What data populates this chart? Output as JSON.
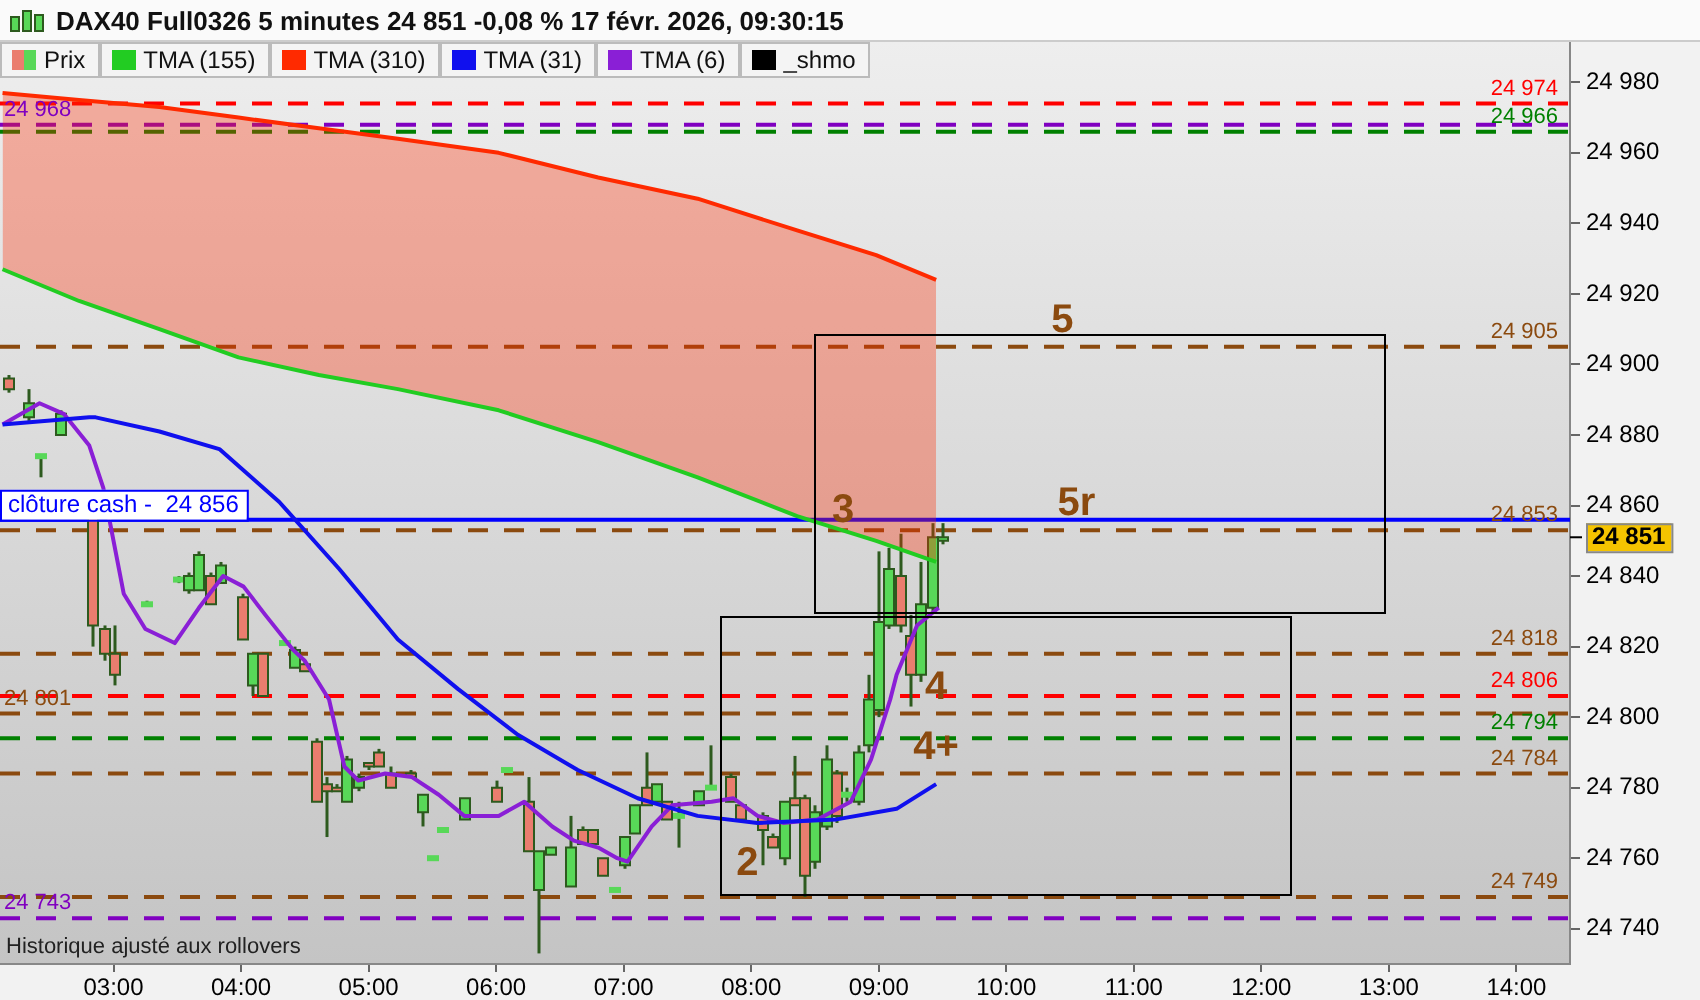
{
  "chart_data": {
    "type": "candlestick",
    "title": "DAX40 Full0326 5 minutes 24 851 -0,08 % 17 févr. 2026, 09:30:15",
    "legend": "top left",
    "xlim": [
      2.11,
      14.42
    ],
    "xticks": [
      {
        "value": 3,
        "label": "03:00"
      },
      {
        "value": 4,
        "label": "04:00"
      },
      {
        "value": 5,
        "label": "05:00"
      },
      {
        "value": 6,
        "label": "06:00"
      },
      {
        "value": 7,
        "label": "07:00"
      },
      {
        "value": 8,
        "label": "08:00"
      },
      {
        "value": 9,
        "label": "09:00"
      },
      {
        "value": 10,
        "label": "10:00"
      },
      {
        "value": 11,
        "label": "11:00"
      },
      {
        "value": 12,
        "label": "12:00"
      },
      {
        "value": 13,
        "label": "13:00"
      },
      {
        "value": 14,
        "label": "14:00"
      }
    ],
    "ylim": [
      24730,
      24992
    ],
    "yticks": [
      {
        "value": 24740,
        "label": "24 740"
      },
      {
        "value": 24760,
        "label": "24 760"
      },
      {
        "value": 24780,
        "label": "24 780"
      },
      {
        "value": 24800,
        "label": "24 800"
      },
      {
        "value": 24820,
        "label": "24 820"
      },
      {
        "value": 24840,
        "label": "24 840"
      },
      {
        "value": 24860,
        "label": "24 860"
      },
      {
        "value": 24880,
        "label": "24 880"
      },
      {
        "value": 24900,
        "label": "24 900"
      },
      {
        "value": 24920,
        "label": "24 920"
      },
      {
        "value": 24940,
        "label": "24 940"
      },
      {
        "value": 24960,
        "label": "24 960"
      },
      {
        "value": 24980,
        "label": "24 980"
      }
    ],
    "series": [
      {
        "name": "Prix",
        "x": [
          2.17,
          2.33,
          2.42,
          2.58,
          2.83,
          2.92,
          3.0,
          3.25,
          3.5,
          3.58,
          3.67,
          3.75,
          3.83,
          4.0,
          4.08,
          4.17,
          4.33,
          4.42,
          4.5,
          4.58,
          4.67,
          4.75,
          4.83,
          4.92,
          5.0,
          5.08,
          5.17,
          5.33,
          5.42,
          5.5,
          5.58,
          5.75,
          6.0,
          6.08,
          6.25,
          6.33,
          6.42,
          6.58,
          6.67,
          6.75,
          6.83,
          6.92,
          7.0,
          7.08,
          7.17,
          7.25,
          7.33,
          7.42,
          7.58,
          7.67,
          7.83,
          7.92,
          8.08,
          8.17,
          8.25,
          8.33,
          8.42,
          8.5,
          8.58,
          8.67,
          8.75,
          8.83,
          8.92,
          9.0,
          9.08,
          9.17,
          9.25,
          9.33,
          9.42,
          9.5
        ],
        "ohlc": [
          [
            24896,
            24897,
            24892,
            24893
          ],
          [
            24885,
            24893,
            24884,
            24889
          ],
          [
            24874,
            24874,
            24868,
            24874
          ],
          [
            24880,
            24887,
            24880,
            24886
          ],
          [
            24857,
            24857,
            24820,
            24826
          ],
          [
            24825,
            24826,
            24816,
            24818
          ],
          [
            24818,
            24826,
            24809,
            24812
          ],
          [
            24832,
            24833,
            24832,
            24832
          ],
          [
            24839,
            24840,
            24838,
            24839
          ],
          [
            24836,
            24841,
            24835,
            24840
          ],
          [
            24836,
            24847,
            24836,
            24846
          ],
          [
            24840,
            24841,
            24832,
            24832
          ],
          [
            24838,
            24844,
            24838,
            24843
          ],
          [
            24834,
            24835,
            24822,
            24822
          ],
          [
            24809,
            24818,
            24806,
            24818
          ],
          [
            24818,
            24818,
            24806,
            24806
          ],
          [
            24821,
            24822,
            24821,
            24821
          ],
          [
            24814,
            24820,
            24814,
            24819
          ],
          [
            24815,
            24816,
            24813,
            24813
          ],
          [
            24793,
            24794,
            24776,
            24776
          ],
          [
            24781,
            24783,
            24766,
            24779
          ],
          [
            24780,
            24781,
            24779,
            24779
          ],
          [
            24776,
            24789,
            24776,
            24788
          ],
          [
            24780,
            24784,
            24779,
            24783
          ],
          [
            24787,
            24787,
            24785,
            24786
          ],
          [
            24790,
            24791,
            24786,
            24786
          ],
          [
            24784,
            24786,
            24780,
            24780
          ],
          [
            24784,
            24785,
            24783,
            24783
          ],
          [
            24773,
            24778,
            24769,
            24778
          ],
          [
            24760,
            24760,
            24760,
            24760
          ],
          [
            24768,
            24768,
            24768,
            24768
          ],
          [
            24771,
            24777,
            24771,
            24777
          ],
          [
            24780,
            24782,
            24776,
            24776
          ],
          [
            24785,
            24785,
            24785,
            24785
          ],
          [
            24776,
            24783,
            24762,
            24762
          ],
          [
            24751,
            24762,
            24733,
            24762
          ],
          [
            24761,
            24763,
            24761,
            24763
          ],
          [
            24752,
            24772,
            24752,
            24763
          ],
          [
            24768,
            24769,
            24764,
            24764
          ],
          [
            24768,
            24768,
            24764,
            24764
          ],
          [
            24760,
            24760,
            24755,
            24755
          ],
          [
            24751,
            24751,
            24751,
            24751
          ],
          [
            24758,
            24766,
            24757,
            24766
          ],
          [
            24767,
            24775,
            24767,
            24775
          ],
          [
            24780,
            24790,
            24775,
            24775
          ],
          [
            24776,
            24781,
            24776,
            24781
          ],
          [
            24776,
            24776,
            24771,
            24771
          ],
          [
            24772,
            24776,
            24763,
            24772
          ],
          [
            24775,
            24779,
            24775,
            24779
          ],
          [
            24780,
            24792,
            24780,
            24780
          ],
          [
            24783,
            24784,
            24776,
            24776
          ],
          [
            24775,
            24775,
            24771,
            24771
          ],
          [
            24772,
            24773,
            24758,
            24768
          ],
          [
            24766,
            24767,
            24763,
            24763
          ],
          [
            24760,
            24776,
            24758,
            24776
          ],
          [
            24777,
            24789,
            24775,
            24775
          ],
          [
            24777,
            24778,
            24749,
            24755
          ],
          [
            24759,
            24775,
            24757,
            24773
          ],
          [
            24769,
            24792,
            24768,
            24788
          ],
          [
            24784,
            24785,
            24770,
            24772
          ],
          [
            24778,
            24780,
            24776,
            24778
          ],
          [
            24776,
            24792,
            24775,
            24790
          ],
          [
            24792,
            24812,
            24790,
            24805
          ],
          [
            24802,
            24847,
            24800,
            24827
          ],
          [
            24826,
            24848,
            24825,
            24842
          ],
          [
            24840,
            24852,
            24824,
            24826
          ],
          [
            24823,
            24829,
            24803,
            24812
          ],
          [
            24812,
            24844,
            24810,
            24832
          ],
          [
            24831,
            24855,
            24830,
            24851
          ],
          [
            24850,
            24855,
            24849,
            24851
          ]
        ],
        "colors": [
          "#ea7d6e",
          "#58d858",
          "#58d858",
          "#58d858",
          "#ea7d6e",
          "#ea7d6e",
          "#ea7d6e",
          "#58d858",
          "#58d858",
          "#58d858",
          "#58d858",
          "#ea7d6e",
          "#58d858",
          "#ea7d6e",
          "#58d858",
          "#ea7d6e",
          "#58d858",
          "#58d858",
          "#ea7d6e",
          "#ea7d6e",
          "#ea7d6e",
          "#ea7d6e",
          "#58d858",
          "#58d858",
          "#ea7d6e",
          "#ea7d6e",
          "#ea7d6e",
          "#ea7d6e",
          "#58d858",
          "#58d858",
          "#58d858",
          "#58d858",
          "#ea7d6e",
          "#58d858",
          "#ea7d6e",
          "#58d858",
          "#58d858",
          "#58d858",
          "#ea7d6e",
          "#ea7d6e",
          "#ea7d6e",
          "#58d858",
          "#58d858",
          "#58d858",
          "#ea7d6e",
          "#58d858",
          "#ea7d6e",
          "#58d858",
          "#58d858",
          "#58d858",
          "#ea7d6e",
          "#ea7d6e",
          "#ea7d6e",
          "#ea7d6e",
          "#58d858",
          "#ea7d6e",
          "#ea7d6e",
          "#58d858",
          "#58d858",
          "#ea7d6e",
          "#58d858",
          "#58d858",
          "#58d858",
          "#58d858",
          "#58d858",
          "#ea7d6e",
          "#ea7d6e",
          "#58d858",
          "#58d858",
          "#58d858"
        ]
      },
      {
        "name": "TMA (155)",
        "type": "line",
        "color": "#22cc22",
        "x": [
          2.13,
          2.73,
          3.36,
          3.98,
          4.61,
          5.23,
          6.02,
          6.8,
          7.58,
          8.36,
          8.98,
          9.45
        ],
        "values": [
          24927,
          24918,
          24910,
          24902,
          24897,
          24893,
          24887,
          24878,
          24868,
          24857,
          24850,
          24844
        ]
      },
      {
        "name": "TMA (310)",
        "type": "line",
        "color": "#ff2a00",
        "x": [
          2.13,
          2.73,
          3.36,
          3.98,
          4.61,
          5.23,
          6.02,
          6.8,
          7.58,
          8.36,
          8.98,
          9.45
        ],
        "values": [
          24977,
          24975,
          24973,
          24970,
          24967,
          24964,
          24960,
          24953,
          24947,
          24938,
          24931,
          24924
        ]
      },
      {
        "name": "TMA (31)",
        "type": "line",
        "color": "#1010ee",
        "x": [
          2.13,
          2.81,
          2.86,
          3.36,
          3.83,
          4.3,
          4.77,
          5.23,
          5.7,
          6.17,
          6.64,
          7.11,
          7.58,
          8.05,
          8.67,
          9.14,
          9.45
        ],
        "values": [
          24883,
          24885,
          24885,
          24881,
          24876,
          24861,
          24842,
          24822,
          24808,
          24795,
          24785,
          24777,
          24772,
          24770,
          24771,
          24774,
          24781
        ]
      },
      {
        "name": "TMA (6)",
        "type": "line",
        "color": "#8a1fd6",
        "x": [
          2.13,
          2.42,
          2.61,
          2.81,
          2.92,
          3.08,
          3.25,
          3.48,
          3.67,
          3.86,
          4.02,
          4.19,
          4.41,
          4.5,
          4.69,
          4.81,
          4.92,
          5.13,
          5.34,
          5.55,
          5.75,
          6.02,
          6.22,
          6.44,
          6.61,
          6.8,
          6.95,
          7.03,
          7.22,
          7.38,
          7.69,
          7.86,
          8.05,
          8.25,
          8.52,
          8.78,
          8.94,
          9.09,
          9.14,
          9.3,
          9.47
        ],
        "values": [
          24883,
          24889,
          24886,
          24877,
          24865,
          24835,
          24825,
          24821,
          24831,
          24840,
          24837,
          24829,
          24819,
          24816,
          24805,
          24786,
          24782,
          24784,
          24783,
          24778,
          24772,
          24772,
          24776,
          24769,
          24765,
          24763,
          24760,
          24759,
          24769,
          24775,
          24776,
          24777,
          24772,
          24770,
          24771,
          24776,
          24788,
          24805,
          24812,
          24826,
          24831
        ]
      },
      {
        "name": "_shmo",
        "type": "line",
        "color": "#000000"
      }
    ],
    "ref_lines": [
      {
        "axis": "y",
        "value": 24974,
        "label": "24 974",
        "color": "#ff0000",
        "line_style": "dashed"
      },
      {
        "axis": "y",
        "value": 24966,
        "label": "24 966",
        "color": "#008000",
        "line_style": "dashed"
      },
      {
        "axis": "y",
        "value": 24968,
        "label": "24 968",
        "color": "#8000c0",
        "line_style": "dashed"
      },
      {
        "axis": "y",
        "value": 24905,
        "label": "24 905",
        "color": "#8b4a0f",
        "line_style": "dashed"
      },
      {
        "axis": "y",
        "value": 24856,
        "label": "clôture cash -  24 856",
        "color": "#0000ff",
        "line_style": "solid"
      },
      {
        "axis": "y",
        "value": 24853,
        "label": "24 853",
        "color": "#8b4a0f",
        "line_style": "dashed"
      },
      {
        "axis": "y",
        "value": 24818,
        "label": "24 818",
        "color": "#8b4a0f",
        "line_style": "dashed"
      },
      {
        "axis": "y",
        "value": 24806,
        "label": "24 806",
        "color": "#ff0000",
        "line_style": "dashed"
      },
      {
        "axis": "y",
        "value": 24801,
        "label": "24 801",
        "color": "#8b4a0f",
        "line_style": "dashed"
      },
      {
        "axis": "y",
        "value": 24794,
        "label": "24 794",
        "color": "#008000",
        "line_style": "dashed"
      },
      {
        "axis": "y",
        "value": 24784,
        "label": "24 784",
        "color": "#8b4a0f",
        "line_style": "dashed"
      },
      {
        "axis": "y",
        "value": 24749,
        "label": "24 749",
        "color": "#8b4a0f",
        "line_style": "dashed"
      },
      {
        "axis": "y",
        "value": 24743,
        "label": "24 743",
        "color": "#8000c0",
        "line_style": "dashed"
      }
    ],
    "annotations": [
      "Historique ajusté aux rollovers",
      "24 851",
      {
        "text": "5",
        "x": 10.44,
        "y": 24905
      },
      {
        "text": "5r",
        "x": 10.55,
        "y": 24853
      },
      {
        "text": "3",
        "x": 8.72,
        "y": 24851
      },
      {
        "text": "4",
        "x": 9.45,
        "y": 24801
      },
      {
        "text": "4+",
        "x": 9.45,
        "y": 24784
      },
      {
        "text": "2",
        "x": 7.97,
        "y": 24751
      }
    ]
  }
}
